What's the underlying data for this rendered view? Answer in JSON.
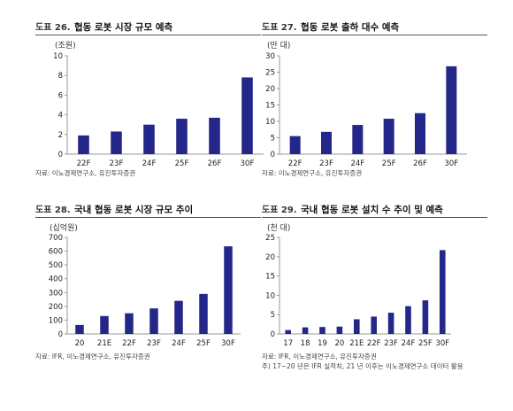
{
  "colors": {
    "bar": "#23278a",
    "axis": "#999999",
    "text": "#222222"
  },
  "panels": [
    {
      "fig_num": "도표 26.",
      "title": "협동 로봇 시장 규모 예측",
      "unit": "(조원)",
      "source": "자료: 이노경제연구소, 유진투자증권",
      "chart_data": {
        "type": "bar",
        "categories": [
          "22F",
          "23F",
          "24F",
          "25F",
          "26F",
          "30F"
        ],
        "values": [
          1.9,
          2.3,
          3.0,
          3.6,
          3.7,
          7.8
        ],
        "ylim": [
          0,
          10
        ],
        "yticks": [
          0,
          2,
          4,
          6,
          8,
          10
        ],
        "ylabel": "(조원)",
        "title": "협동 로봇 시장 규모 예측"
      }
    },
    {
      "fig_num": "도표 27.",
      "title": "협동 로봇 출하 대수 예측",
      "unit": "(만 대)",
      "source": "자료: 이노경제연구소, 유진투자증권",
      "chart_data": {
        "type": "bar",
        "categories": [
          "22F",
          "23F",
          "24F",
          "25F",
          "26F",
          "30F"
        ],
        "values": [
          5.5,
          6.8,
          8.9,
          10.8,
          12.5,
          26.8
        ],
        "ylim": [
          0,
          30
        ],
        "yticks": [
          0,
          5,
          10,
          15,
          20,
          25,
          30
        ],
        "ylabel": "(만 대)",
        "title": "협동 로봇 출하 대수 예측"
      }
    },
    {
      "fig_num": "도표 28.",
      "title": "국내 협동 로봇 시장 규모 추이",
      "unit": "(십억원)",
      "source": "자료: IFR, 이노경제연구소, 유진투자증권",
      "chart_data": {
        "type": "bar",
        "categories": [
          "20",
          "21E",
          "22F",
          "23F",
          "24F",
          "25F",
          "30F"
        ],
        "values": [
          65,
          130,
          150,
          185,
          240,
          290,
          635
        ],
        "ylim": [
          0,
          700
        ],
        "yticks": [
          0,
          100,
          200,
          300,
          400,
          500,
          600,
          700
        ],
        "ylabel": "(십억원)",
        "title": "국내 협동 로봇 시장 규모 추이"
      }
    },
    {
      "fig_num": "도표 29.",
      "title": "국내 협동 로봇 설치 수 추이 및 예측",
      "unit": "(천 대)",
      "source": "자료: IFR, 이노경제연구소, 유진투자증권",
      "note": "주) 17~20 년은 IFR 실적치, 21 년 이후는 이노경제연구소 데이터 활용",
      "chart_data": {
        "type": "bar",
        "categories": [
          "17",
          "18",
          "19",
          "20",
          "21E",
          "22F",
          "23F",
          "24F",
          "25F",
          "30F"
        ],
        "values": [
          1.0,
          1.7,
          1.8,
          1.9,
          3.8,
          4.5,
          5.5,
          7.2,
          8.7,
          21.7
        ],
        "ylim": [
          0,
          25
        ],
        "yticks": [
          0,
          5,
          10,
          15,
          20,
          25
        ],
        "ylabel": "(천 대)",
        "title": "국내 협동 로봇 설치 수 추이 및 예측"
      }
    }
  ]
}
